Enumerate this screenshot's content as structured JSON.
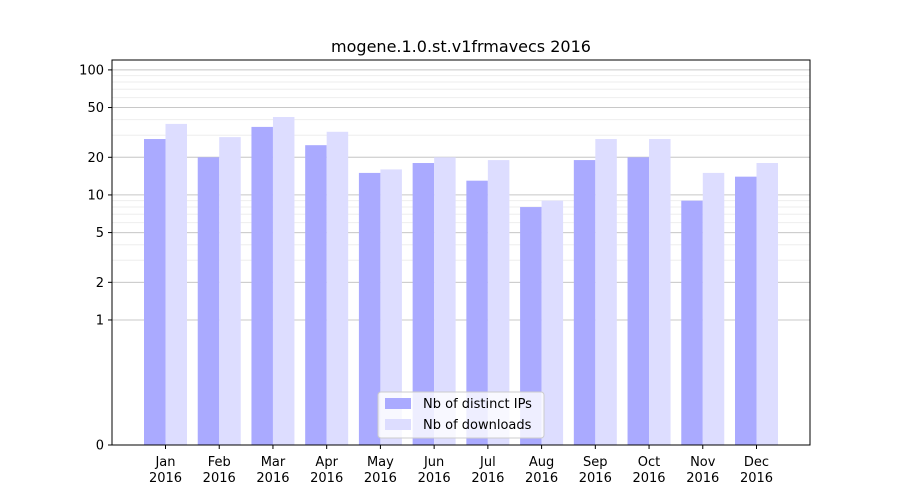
{
  "chart_data": {
    "type": "bar",
    "title": "mogene.1.0.st.v1frmavecs 2016",
    "categories": [
      "Jan\n2016",
      "Feb\n2016",
      "Mar\n2016",
      "Apr\n2016",
      "May\n2016",
      "Jun\n2016",
      "Jul\n2016",
      "Aug\n2016",
      "Sep\n2016",
      "Oct\n2016",
      "Nov\n2016",
      "Dec\n2016"
    ],
    "series": [
      {
        "name": "Nb of distinct IPs",
        "color": "#aaaaff",
        "values": [
          28,
          20,
          35,
          25,
          15,
          18,
          13,
          8,
          19,
          20,
          9,
          14
        ]
      },
      {
        "name": "Nb of downloads",
        "color": "#ddddff",
        "values": [
          37,
          29,
          42,
          32,
          16,
          20,
          19,
          9,
          28,
          28,
          15,
          18
        ]
      }
    ],
    "y_scale": "symlog",
    "ylim": [
      0,
      120
    ],
    "y_ticks": [
      0,
      1,
      2,
      5,
      10,
      20,
      50,
      100
    ],
    "grid": true,
    "legend_position": "bottom-center"
  }
}
